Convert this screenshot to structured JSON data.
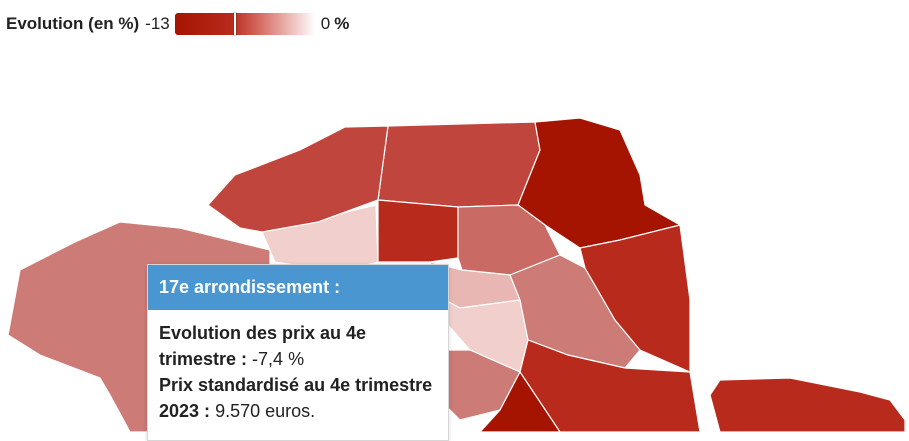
{
  "legend": {
    "title": "Evolution (en %)",
    "min_label": "-13",
    "max_label": "0",
    "unit": "%",
    "color_low": "#a51400",
    "color_high": "#ffffff"
  },
  "tooltip": {
    "title": "17e arrondissement :",
    "evolution_label": "Evolution des prix au 4e trimestre :",
    "evolution_value": "-7,4 %",
    "prix_label": "Prix standardisé au 4e trimestre 2023 :",
    "prix_value": "9.570 euros.",
    "header_color": "#4a96d0"
  },
  "map": {
    "highlighted_region": "17e arrondissement",
    "fill_colors": {
      "darkest": "#a51400",
      "dark": "#b82a1c",
      "medium": "#c0463d",
      "medium_light": "#c96b64",
      "light": "#cc7b76",
      "pale": "#e8b7b3",
      "palest": "#f0cfcc"
    }
  }
}
